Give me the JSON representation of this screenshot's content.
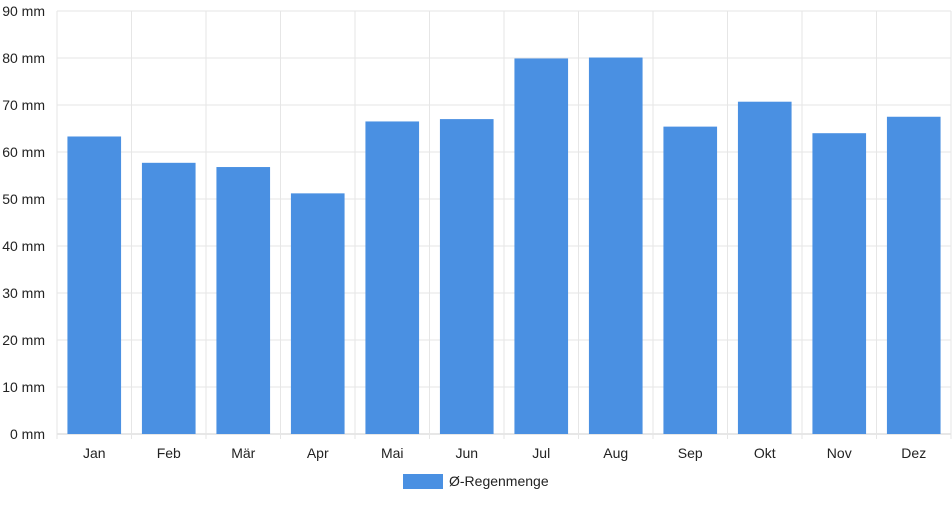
{
  "chart_data": {
    "type": "bar",
    "categories": [
      "Jan",
      "Feb",
      "Mär",
      "Apr",
      "Mai",
      "Jun",
      "Jul",
      "Aug",
      "Sep",
      "Okt",
      "Nov",
      "Dez"
    ],
    "series": [
      {
        "name": "Ø-Regenmenge",
        "values": [
          63.3,
          57.7,
          56.8,
          51.2,
          66.5,
          67.0,
          79.9,
          80.1,
          65.4,
          70.7,
          64.0,
          67.5
        ],
        "color": "#4a90e2"
      }
    ],
    "y_unit": " mm",
    "ylim": [
      0,
      90
    ],
    "y_tick_step": 10,
    "grid": true,
    "legend_position": "bottom"
  }
}
